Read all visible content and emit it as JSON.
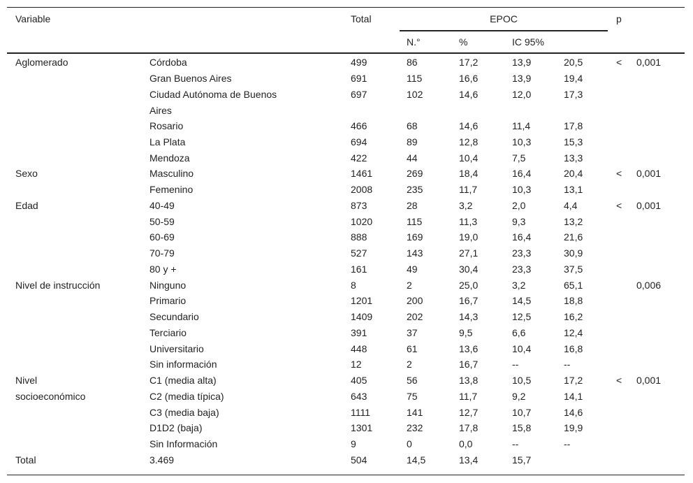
{
  "header": {
    "variable": "Variable",
    "total": "Total",
    "group": "EPOC",
    "n": "N.°",
    "pct": "%",
    "ci": "IC 95%",
    "p": "p"
  },
  "table": {
    "rows": [
      [
        "Aglomerado",
        "Córdoba",
        "499",
        "86",
        "17,2",
        "13,9",
        "20,5",
        "<",
        "0,001"
      ],
      [
        null,
        "Gran Buenos Aires",
        "691",
        "115",
        "16,6",
        "13,9",
        "19,4",
        null,
        null
      ],
      [
        null,
        "Ciudad Autónoma de Buenos\nAires",
        "697",
        "102",
        "14,6",
        "12,0",
        "17,3",
        null,
        null
      ],
      [
        null,
        "Rosario",
        "466",
        "68",
        "14,6",
        "11,4",
        "17,8",
        null,
        null
      ],
      [
        null,
        "La Plata",
        "694",
        "89",
        "12,8",
        "10,3",
        "15,3",
        null,
        null
      ],
      [
        null,
        "Mendoza",
        "422",
        "44",
        "10,4",
        "7,5",
        "13,3",
        null,
        null
      ],
      [
        "Sexo",
        "Masculino",
        "1461",
        "269",
        "18,4",
        "16,4",
        "20,4",
        "<",
        "0,001"
      ],
      [
        null,
        "Femenino",
        "2008",
        "235",
        "11,7",
        "10,3",
        "13,1",
        null,
        null
      ],
      [
        "Edad",
        "40-49",
        "873",
        "28",
        "3,2",
        "2,0",
        "4,4",
        "<",
        "0,001"
      ],
      [
        null,
        "50-59",
        "1020",
        "115",
        "11,3",
        "9,3",
        "13,2",
        null,
        null
      ],
      [
        null,
        "60-69",
        "888",
        "169",
        "19,0",
        "16,4",
        "21,6",
        null,
        null
      ],
      [
        null,
        "70-79",
        "527",
        "143",
        "27,1",
        "23,3",
        "30,9",
        null,
        null
      ],
      [
        null,
        "80 y +",
        "161",
        "49",
        "30,4",
        "23,3",
        "37,5",
        null,
        null
      ],
      [
        "Nivel de instrucción",
        "Ninguno",
        "8",
        "2",
        "25,0",
        "3,2",
        "65,1",
        null,
        "0,006"
      ],
      [
        null,
        "Primario",
        "1201",
        "200",
        "16,7",
        "14,5",
        "18,8",
        null,
        null
      ],
      [
        null,
        "Secundario",
        "1409",
        "202",
        "14,3",
        "12,5",
        "16,2",
        null,
        null
      ],
      [
        null,
        "Terciario",
        "391",
        "37",
        "9,5",
        "6,6",
        "12,4",
        null,
        null
      ],
      [
        null,
        "Universitario",
        "448",
        "61",
        "13,6",
        "10,4",
        "16,8",
        null,
        null
      ],
      [
        null,
        "Sin información",
        "12",
        "2",
        "16,7",
        "--",
        "--",
        null,
        null
      ],
      [
        "Nivel\nsocioeconómico",
        "C1 (media alta)",
        "405",
        "56",
        "13,8",
        "10,5",
        "17,2",
        "<",
        "0,001"
      ],
      [
        null,
        "C2 (media típica)",
        "643",
        "75",
        "11,7",
        "9,2",
        "14,1",
        null,
        null
      ],
      [
        null,
        "C3 (media baja)",
        "1111",
        "141",
        "12,7",
        "10,7",
        "14,6",
        null,
        null
      ],
      [
        null,
        "D1D2 (baja)",
        "1301",
        "232",
        "17,8",
        "15,8",
        "19,9",
        null,
        null
      ],
      [
        null,
        "Sin Información",
        "9",
        "0",
        "0,0",
        "--",
        "--",
        null,
        null
      ],
      [
        "Total",
        "3.469",
        "504",
        "14,5",
        "13,4",
        "15,7",
        null,
        null,
        null
      ]
    ]
  }
}
